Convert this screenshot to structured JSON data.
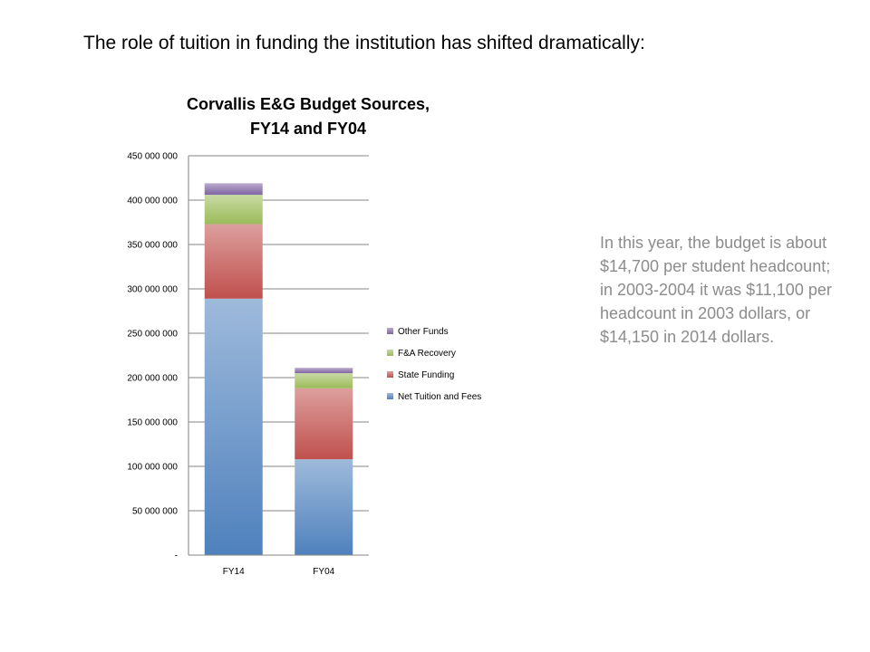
{
  "slide": {
    "title": "The role of tuition in funding the institution has shifted dramatically:",
    "note": "In this year, the budget is about  $14,700 per student headcount; in 2003-2004 it was $11,100 per headcount in 2003 dollars, or $14,150 in 2014 dollars."
  },
  "chart_data": {
    "type": "bar",
    "stacked": true,
    "title_lines": [
      "Corvallis E&G Budget Sources,",
      "FY14 and FY04"
    ],
    "categories": [
      "FY14",
      "FY04"
    ],
    "ylim": [
      0,
      450000000
    ],
    "yticks": [
      0,
      50000000,
      100000000,
      150000000,
      200000000,
      250000000,
      300000000,
      350000000,
      400000000,
      450000000
    ],
    "ytick_labels": [
      "-",
      "50 000 000",
      "100 000 000",
      "150 000 000",
      "200 000 000",
      "250 000 000",
      "300 000 000",
      "350 000 000",
      "400 000 000",
      "450 000 000"
    ],
    "grid": true,
    "legend_position": "right",
    "series": [
      {
        "name": "Net Tuition and Fees",
        "values": [
          289000000,
          108000000
        ],
        "color": "#4f81bd"
      },
      {
        "name": "State Funding",
        "values": [
          84000000,
          80000000
        ],
        "color": "#c0504d"
      },
      {
        "name": "F&A Recovery",
        "values": [
          33000000,
          17000000
        ],
        "color": "#9bbb59"
      },
      {
        "name": "Other Funds",
        "values": [
          13000000,
          6000000
        ],
        "color": "#8064a2"
      }
    ]
  }
}
